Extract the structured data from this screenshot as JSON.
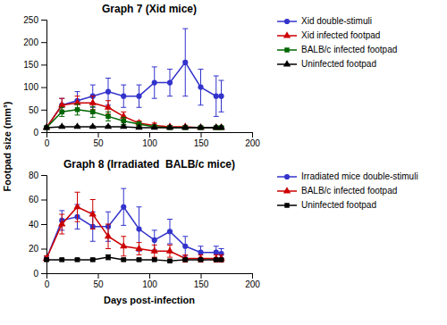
{
  "chart_data": [
    {
      "type": "line",
      "title": "Graph 7 (Xid mice)",
      "ylabel": "Footpad size (mm³)",
      "x": [
        0,
        15,
        30,
        45,
        60,
        75,
        90,
        105,
        120,
        135,
        150,
        165,
        170
      ],
      "series": [
        {
          "name": "Xid double-stimuli",
          "color": "#3333cc",
          "marker": "circle",
          "values": [
            10,
            60,
            70,
            80,
            90,
            80,
            80,
            110,
            110,
            155,
            100,
            80,
            80
          ],
          "errors": [
            2,
            15,
            20,
            25,
            30,
            25,
            25,
            35,
            30,
            75,
            40,
            45,
            35
          ]
        },
        {
          "name": "Xid infected footpad",
          "color": "#cc0000",
          "marker": "triangle",
          "values": [
            10,
            60,
            65,
            65,
            55,
            35,
            20,
            15,
            12,
            12,
            10,
            10,
            10
          ],
          "errors": [
            2,
            15,
            15,
            15,
            15,
            10,
            5,
            5,
            3,
            3,
            3,
            3,
            3
          ]
        },
        {
          "name": "BALB/c infected footpad",
          "color": "#006600",
          "marker": "square",
          "values": [
            10,
            45,
            50,
            45,
            35,
            25,
            18,
            12,
            10,
            10,
            10,
            10,
            10
          ],
          "errors": [
            2,
            10,
            12,
            12,
            10,
            8,
            5,
            3,
            3,
            3,
            3,
            3,
            3
          ]
        },
        {
          "name": "Uninfected footpad",
          "color": "#000000",
          "marker": "triangle",
          "values": [
            10,
            12,
            12,
            12,
            12,
            12,
            10,
            10,
            10,
            10,
            10,
            10,
            10
          ],
          "errors": [
            1,
            2,
            2,
            2,
            2,
            2,
            1,
            1,
            1,
            1,
            1,
            1,
            1
          ]
        }
      ],
      "xlim": [
        0,
        200
      ],
      "xticks": [
        0,
        50,
        100,
        150,
        200
      ],
      "ylim": [
        0,
        250
      ],
      "yticks": [
        0,
        50,
        100,
        150,
        200,
        250
      ],
      "legend": "right"
    },
    {
      "type": "line",
      "title": "Graph 8 (Irradiated  BALB/c mice)",
      "xlabel": "Days post-infection",
      "x": [
        0,
        15,
        30,
        45,
        60,
        75,
        90,
        105,
        120,
        135,
        150,
        165,
        170
      ],
      "series": [
        {
          "name": "Irradiated mice double-stimuli",
          "color": "#3333cc",
          "marker": "circle",
          "values": [
            12,
            43,
            46,
            38,
            38,
            54,
            36,
            27,
            34,
            22,
            17,
            17,
            16
          ],
          "errors": [
            2,
            8,
            10,
            12,
            12,
            15,
            18,
            8,
            10,
            8,
            5,
            5,
            4
          ]
        },
        {
          "name": "BALB/c infected footpad",
          "color": "#cc0000",
          "marker": "triangle",
          "values": [
            12,
            40,
            54,
            48,
            30,
            22,
            20,
            18,
            18,
            12,
            12,
            12,
            12
          ],
          "errors": [
            2,
            8,
            12,
            12,
            10,
            8,
            5,
            5,
            5,
            3,
            3,
            3,
            3
          ]
        },
        {
          "name": "Uninfected footpad",
          "color": "#000000",
          "marker": "square",
          "values": [
            11,
            11,
            11,
            11,
            13,
            11,
            11,
            11,
            10,
            11,
            11,
            11,
            11
          ],
          "errors": [
            1,
            1,
            1,
            1,
            2,
            1,
            1,
            1,
            1,
            1,
            1,
            1,
            1
          ]
        }
      ],
      "xlim": [
        0,
        200
      ],
      "xticks": [
        0,
        50,
        100,
        150,
        200
      ],
      "ylim": [
        0,
        80
      ],
      "yticks": [
        0,
        20,
        40,
        60,
        80
      ],
      "legend": "right"
    }
  ]
}
